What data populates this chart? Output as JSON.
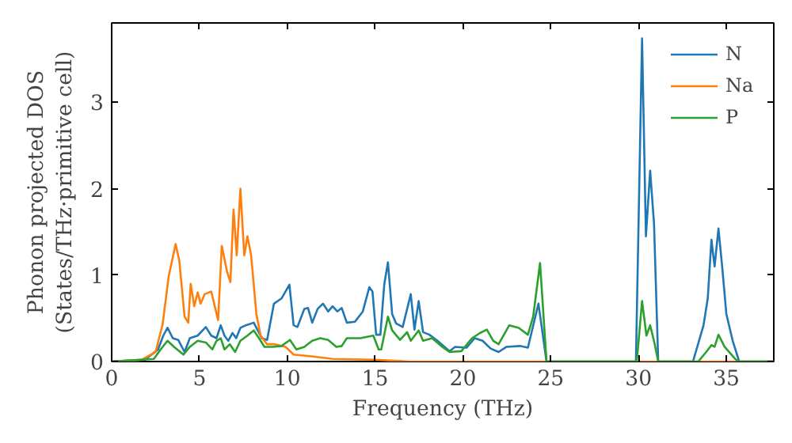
{
  "chart_data": {
    "type": "line",
    "xlabel": "Frequency (THz)",
    "ylabel": "Phonon projected DOS\n(States/THz·primitive cell)",
    "xlim": [
      0,
      37.7
    ],
    "ylim": [
      0,
      3.92
    ],
    "xticks": [
      0,
      5,
      10,
      15,
      20,
      25,
      30,
      35
    ],
    "yticks": [
      0,
      1,
      2,
      3
    ],
    "grid": false,
    "legend": "top right",
    "line_style": "solid",
    "series": [
      {
        "name": "N",
        "color": "#1f77b4",
        "x": [
          0,
          1.9,
          2.64,
          2.94,
          3.18,
          3.48,
          3.79,
          4.15,
          4.45,
          4.9,
          5.36,
          5.67,
          5.97,
          6.21,
          6.42,
          6.64,
          6.88,
          7.09,
          7.33,
          7.64,
          8.09,
          8.55,
          8.85,
          9.24,
          9.67,
          10.12,
          10.36,
          10.58,
          10.97,
          11.18,
          11.42,
          11.73,
          12.03,
          12.33,
          12.58,
          12.85,
          13.1,
          13.39,
          13.85,
          14.3,
          14.67,
          14.85,
          15.06,
          15.3,
          15.52,
          15.73,
          15.97,
          16.2,
          16.57,
          17.03,
          17.24,
          17.48,
          17.73,
          18.09,
          18.55,
          19.24,
          19.55,
          20.2,
          20.67,
          21.12,
          21.58,
          22.03,
          22.48,
          23.24,
          23.7,
          24.3,
          24.76,
          29.85,
          30.2,
          30.42,
          30.66,
          30.88,
          31.12,
          33.1,
          33.7,
          33.94,
          34.15,
          34.33,
          34.55,
          34.76,
          35.0,
          35.36,
          35.73,
          37.7
        ],
        "values": [
          0,
          0.02,
          0.14,
          0.3,
          0.39,
          0.27,
          0.25,
          0.11,
          0.27,
          0.3,
          0.4,
          0.3,
          0.27,
          0.42,
          0.3,
          0.24,
          0.33,
          0.27,
          0.39,
          0.42,
          0.45,
          0.27,
          0.25,
          0.67,
          0.73,
          0.89,
          0.42,
          0.4,
          0.61,
          0.62,
          0.45,
          0.61,
          0.67,
          0.58,
          0.64,
          0.58,
          0.62,
          0.45,
          0.46,
          0.58,
          0.86,
          0.81,
          0.31,
          0.31,
          0.89,
          1.15,
          0.55,
          0.44,
          0.4,
          0.78,
          0.37,
          0.7,
          0.34,
          0.31,
          0.24,
          0.12,
          0.17,
          0.16,
          0.27,
          0.24,
          0.15,
          0.11,
          0.17,
          0.18,
          0.16,
          0.67,
          0,
          0,
          3.74,
          1.45,
          2.21,
          1.6,
          0,
          0,
          0.42,
          0.73,
          1.41,
          1.1,
          1.54,
          1.1,
          0.55,
          0.24,
          0,
          0
        ]
      },
      {
        "name": "Na",
        "color": "#ff7f0e",
        "x": [
          0,
          1.7,
          2.5,
          2.9,
          3.25,
          3.64,
          3.85,
          4.15,
          4.36,
          4.5,
          4.7,
          4.9,
          5.06,
          5.3,
          5.67,
          6.06,
          6.27,
          6.57,
          6.76,
          6.94,
          7.12,
          7.33,
          7.55,
          7.73,
          7.94,
          8.24,
          8.48,
          8.85,
          9.3,
          9.9,
          10.36,
          11.4,
          12.6,
          15.0,
          17.0,
          37.7
        ],
        "values": [
          0,
          0.02,
          0.11,
          0.43,
          0.99,
          1.36,
          1.17,
          0.52,
          0.45,
          0.9,
          0.64,
          0.8,
          0.67,
          0.78,
          0.81,
          0.48,
          1.34,
          1.04,
          0.92,
          1.76,
          1.23,
          2.0,
          1.23,
          1.45,
          1.23,
          0.55,
          0.3,
          0.2,
          0.2,
          0.17,
          0.08,
          0.06,
          0.03,
          0.02,
          0,
          0
        ]
      },
      {
        "name": "P",
        "color": "#2ca02c",
        "x": [
          0,
          2.4,
          2.79,
          3.18,
          3.55,
          4.09,
          4.45,
          4.9,
          5.36,
          5.73,
          5.97,
          6.21,
          6.42,
          6.73,
          7.03,
          7.33,
          7.73,
          8.09,
          8.39,
          8.7,
          9.15,
          9.67,
          10.15,
          10.52,
          10.97,
          11.42,
          11.88,
          12.33,
          12.79,
          13.1,
          13.39,
          14.15,
          14.9,
          15.2,
          15.35,
          15.73,
          15.97,
          16.42,
          16.82,
          17.03,
          17.48,
          17.73,
          18.24,
          18.76,
          19.24,
          19.91,
          20.52,
          20.97,
          21.36,
          21.73,
          22.03,
          22.64,
          23.18,
          23.7,
          24.0,
          24.39,
          24.76,
          29.9,
          30.2,
          30.45,
          30.66,
          30.9,
          31.12,
          33.4,
          33.85,
          34.15,
          34.33,
          34.55,
          34.9,
          35.5,
          35.7,
          37.7
        ],
        "values": [
          0,
          0.03,
          0.14,
          0.24,
          0.17,
          0.08,
          0.17,
          0.24,
          0.22,
          0.14,
          0.24,
          0.27,
          0.14,
          0.2,
          0.11,
          0.24,
          0.3,
          0.36,
          0.27,
          0.17,
          0.17,
          0.18,
          0.25,
          0.14,
          0.17,
          0.24,
          0.27,
          0.25,
          0.17,
          0.18,
          0.27,
          0.27,
          0.3,
          0.14,
          0.14,
          0.52,
          0.36,
          0.25,
          0.34,
          0.24,
          0.36,
          0.24,
          0.27,
          0.18,
          0.11,
          0.12,
          0.27,
          0.33,
          0.37,
          0.24,
          0.2,
          0.42,
          0.39,
          0.31,
          0.52,
          1.14,
          0,
          0,
          0.7,
          0.3,
          0.42,
          0.22,
          0,
          0,
          0.11,
          0.19,
          0.17,
          0.31,
          0.17,
          0.03,
          0,
          0
        ]
      }
    ]
  }
}
